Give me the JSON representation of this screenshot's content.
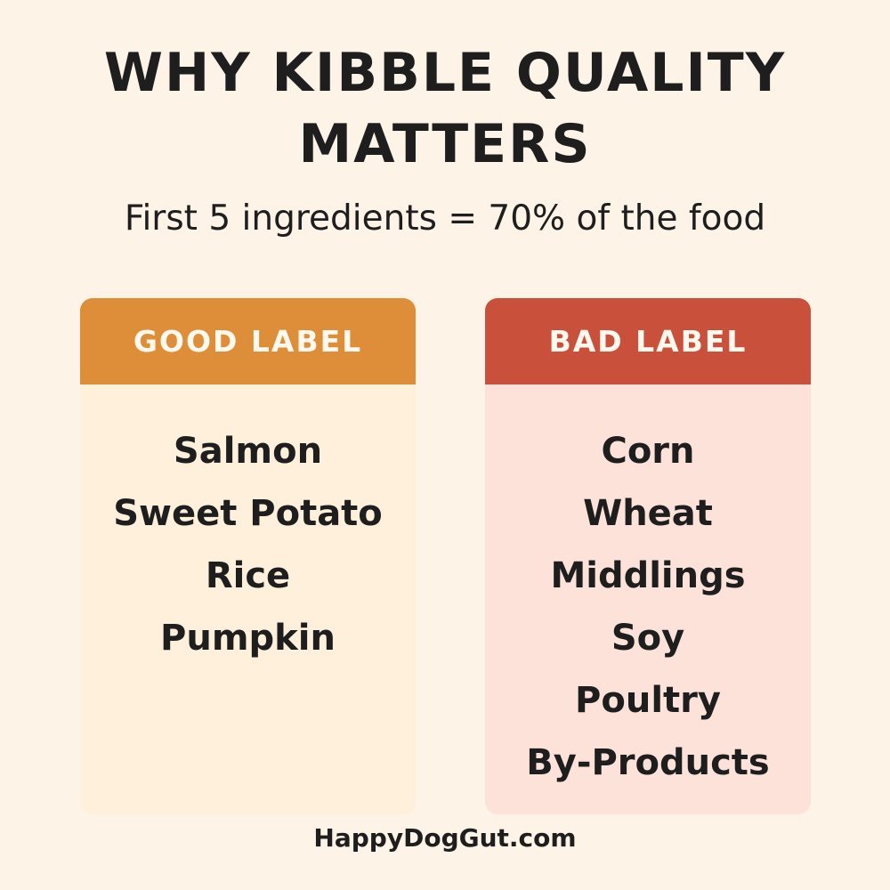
{
  "title": {
    "line1": "WHY KIBBLE QUALITY",
    "line2": "MATTERS"
  },
  "subtitle": "First 5 ingredients = 70% of the food",
  "good_card": {
    "header": "GOOD LABEL",
    "color": "#de8e38",
    "items": [
      "Salmon",
      "Sweet Potato",
      "Rice",
      "Pumpkin"
    ]
  },
  "bad_card": {
    "header": "BAD LABEL",
    "color": "#c9503a",
    "items": [
      "Corn",
      "Wheat",
      "Middlings",
      "Soy",
      "Poultry",
      "By-Products"
    ]
  },
  "footer": "HappyDogGut.com"
}
